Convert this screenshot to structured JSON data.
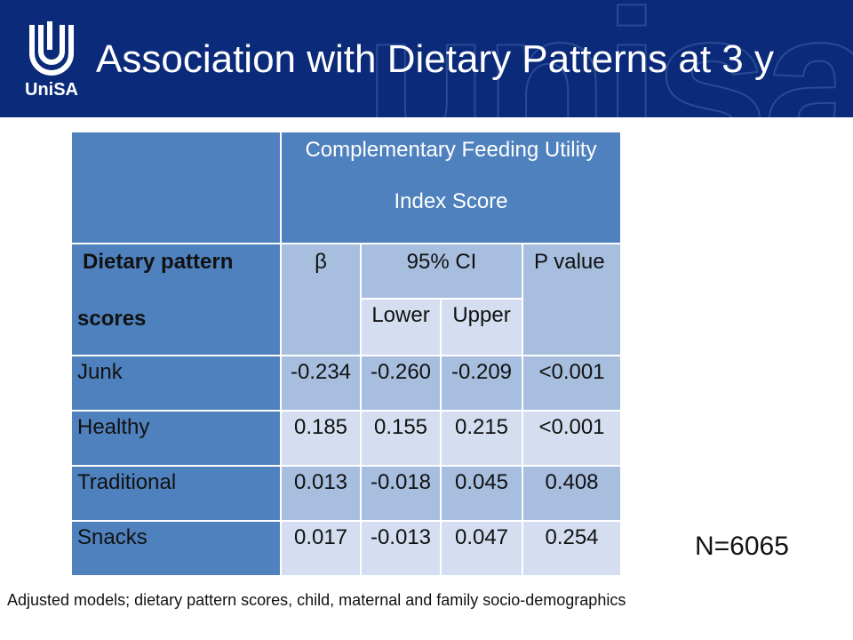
{
  "header": {
    "title": "Association with Dietary Patterns at 3 y",
    "logo_text": "UniSA",
    "watermark": "unisa"
  },
  "table": {
    "outcome_line1": "Complementary Feeding Utility",
    "outcome_line2": "Index Score",
    "row_header_line1": "Dietary pattern",
    "row_header_line2": "scores",
    "col_beta": "β",
    "col_ci": "95% CI",
    "col_lower": "Lower",
    "col_upper": "Upper",
    "col_p": "P value",
    "rows": [
      {
        "label": "Junk",
        "beta": "-0.234",
        "lower": "-0.260",
        "upper": "-0.209",
        "p": "<0.001"
      },
      {
        "label": "Healthy",
        "beta": "0.185",
        "lower": "0.155",
        "upper": "0.215",
        "p": "<0.001"
      },
      {
        "label": "Traditional",
        "beta": "0.013",
        "lower": "-0.018",
        "upper": "0.045",
        "p": "0.408"
      },
      {
        "label": "Snacks",
        "beta": "0.017",
        "lower": "-0.013",
        "upper": "0.047",
        "p": "0.254"
      }
    ]
  },
  "n_label": "N=6065",
  "footnote": "Adjusted models; dietary pattern scores, child, maternal and family socio-demographics"
}
